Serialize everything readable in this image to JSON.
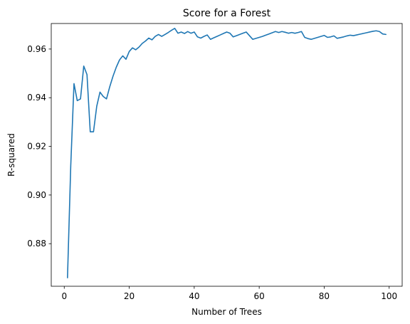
{
  "chart_data": {
    "type": "line",
    "title": "Score for a Forest",
    "xlabel": "Number of Trees",
    "ylabel": "R-squared",
    "xlim": [
      -4,
      104
    ],
    "ylim": [
      0.8625,
      0.9705
    ],
    "xticks": [
      0,
      20,
      40,
      60,
      80,
      100
    ],
    "xtick_labels": [
      "0",
      "20",
      "40",
      "60",
      "80",
      "100"
    ],
    "yticks": [
      0.88,
      0.9,
      0.92,
      0.94,
      0.96
    ],
    "ytick_labels": [
      "0.88",
      "0.90",
      "0.92",
      "0.94",
      "0.96"
    ],
    "grid": false,
    "series": [
      {
        "name": "R-squared",
        "color": "#1f77b4",
        "x": [
          1,
          2,
          3,
          4,
          5,
          6,
          7,
          8,
          9,
          10,
          11,
          12,
          13,
          14,
          15,
          16,
          17,
          18,
          19,
          20,
          21,
          22,
          23,
          24,
          25,
          26,
          27,
          28,
          29,
          30,
          31,
          32,
          33,
          34,
          35,
          36,
          37,
          38,
          39,
          40,
          41,
          42,
          43,
          44,
          45,
          46,
          47,
          48,
          49,
          50,
          51,
          52,
          53,
          54,
          55,
          56,
          57,
          58,
          59,
          60,
          61,
          62,
          63,
          64,
          65,
          66,
          67,
          68,
          69,
          70,
          71,
          72,
          73,
          74,
          75,
          76,
          77,
          78,
          79,
          80,
          81,
          82,
          83,
          84,
          85,
          86,
          87,
          88,
          89,
          90,
          91,
          92,
          93,
          94,
          95,
          96,
          97,
          98,
          99
        ],
        "y": [
          0.866,
          0.912,
          0.9458,
          0.9388,
          0.9395,
          0.953,
          0.9495,
          0.926,
          0.926,
          0.9365,
          0.9423,
          0.9405,
          0.9395,
          0.9445,
          0.9488,
          0.9525,
          0.9555,
          0.9572,
          0.9558,
          0.959,
          0.9605,
          0.9597,
          0.9608,
          0.9623,
          0.9633,
          0.9645,
          0.9638,
          0.9652,
          0.966,
          0.9652,
          0.966,
          0.9668,
          0.9677,
          0.9685,
          0.9665,
          0.967,
          0.9664,
          0.9672,
          0.9665,
          0.967,
          0.965,
          0.9645,
          0.9652,
          0.9658,
          0.964,
          0.9646,
          0.9652,
          0.9658,
          0.9664,
          0.967,
          0.9665,
          0.965,
          0.9655,
          0.966,
          0.9665,
          0.967,
          0.9655,
          0.964,
          0.9644,
          0.9648,
          0.9652,
          0.9657,
          0.9662,
          0.9667,
          0.9672,
          0.9668,
          0.9672,
          0.9669,
          0.9665,
          0.9668,
          0.9665,
          0.9668,
          0.9672,
          0.9648,
          0.9643,
          0.964,
          0.9644,
          0.9648,
          0.9652,
          0.9656,
          0.9648,
          0.965,
          0.9654,
          0.9644,
          0.9647,
          0.965,
          0.9654,
          0.9657,
          0.9655,
          0.9658,
          0.9661,
          0.9664,
          0.9667,
          0.967,
          0.9673,
          0.9675,
          0.9672,
          0.9662,
          0.966
        ]
      }
    ]
  }
}
